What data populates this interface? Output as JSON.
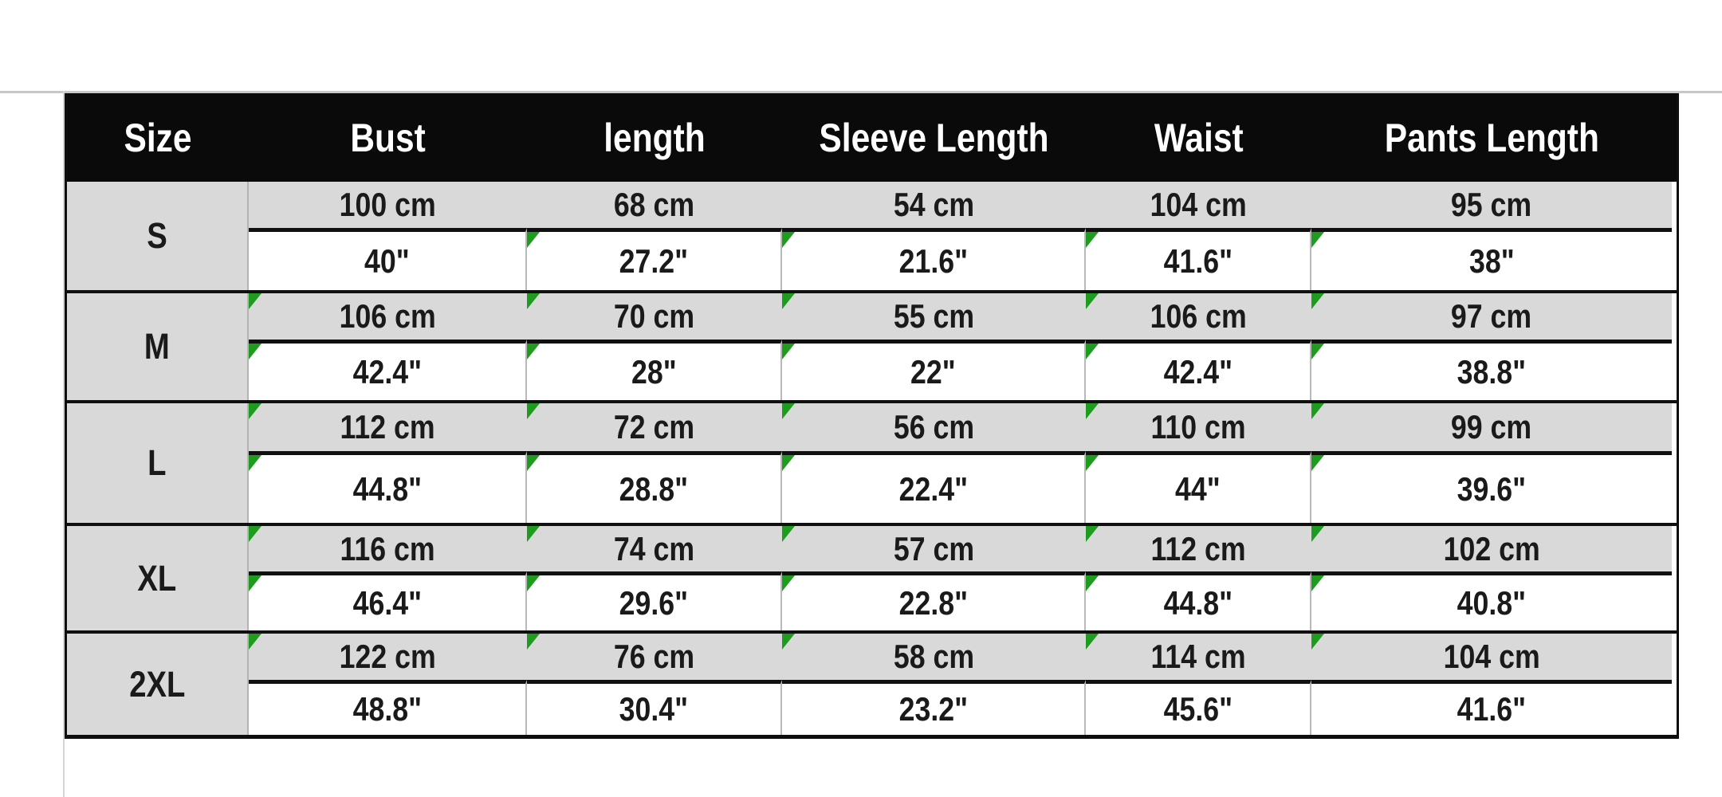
{
  "colors": {
    "header_bg": "#0a0a0a",
    "header_text": "#ffffff",
    "cm_row_bg": "#d9d9d9",
    "inch_row_bg": "#ffffff",
    "grid_black": "#101010",
    "divider_gray": "#b3b3b3",
    "indicator_green": "#1f9b1f",
    "page_rule_gray": "#c8c8c8"
  },
  "chart_data": {
    "type": "table",
    "columns": [
      "Size",
      "Bust",
      "length",
      "Sleeve Length",
      "Waist",
      "Pants Length"
    ],
    "units_per_size": [
      "cm",
      "inch"
    ],
    "rows": [
      {
        "size": "S",
        "cm": [
          "100 cm",
          "68 cm",
          "54 cm",
          "104 cm",
          "95 cm"
        ],
        "inch": [
          "40\"",
          "27.2\"",
          "21.6\"",
          "41.6\"",
          "38\""
        ],
        "cm_indicator": [
          false,
          false,
          false,
          false,
          false
        ],
        "inch_indicator": [
          false,
          true,
          true,
          true,
          true
        ]
      },
      {
        "size": "M",
        "cm": [
          "106 cm",
          "70 cm",
          "55 cm",
          "106 cm",
          "97 cm"
        ],
        "inch": [
          "42.4\"",
          "28\"",
          "22\"",
          "42.4\"",
          "38.8\""
        ],
        "cm_indicator": [
          true,
          true,
          true,
          true,
          true
        ],
        "inch_indicator": [
          true,
          true,
          true,
          true,
          true
        ]
      },
      {
        "size": "L",
        "cm": [
          "112 cm",
          "72 cm",
          "56 cm",
          "110 cm",
          "99 cm"
        ],
        "inch": [
          "44.8\"",
          "28.8\"",
          "22.4\"",
          "44\"",
          "39.6\""
        ],
        "cm_indicator": [
          true,
          true,
          true,
          true,
          true
        ],
        "inch_indicator": [
          true,
          true,
          true,
          true,
          true
        ]
      },
      {
        "size": "XL",
        "cm": [
          "116 cm",
          "74 cm",
          "57 cm",
          "112 cm",
          "102 cm"
        ],
        "inch": [
          "46.4\"",
          "29.6\"",
          "22.8\"",
          "44.8\"",
          "40.8\""
        ],
        "cm_indicator": [
          true,
          true,
          true,
          true,
          true
        ],
        "inch_indicator": [
          true,
          true,
          true,
          true,
          true
        ]
      },
      {
        "size": "2XL",
        "cm": [
          "122 cm",
          "76 cm",
          "58 cm",
          "114 cm",
          "104 cm"
        ],
        "inch": [
          "48.8\"",
          "30.4\"",
          "23.2\"",
          "45.6\"",
          "41.6\""
        ],
        "cm_indicator": [
          true,
          true,
          true,
          true,
          true
        ],
        "inch_indicator": [
          false,
          false,
          false,
          false,
          false
        ]
      }
    ]
  }
}
